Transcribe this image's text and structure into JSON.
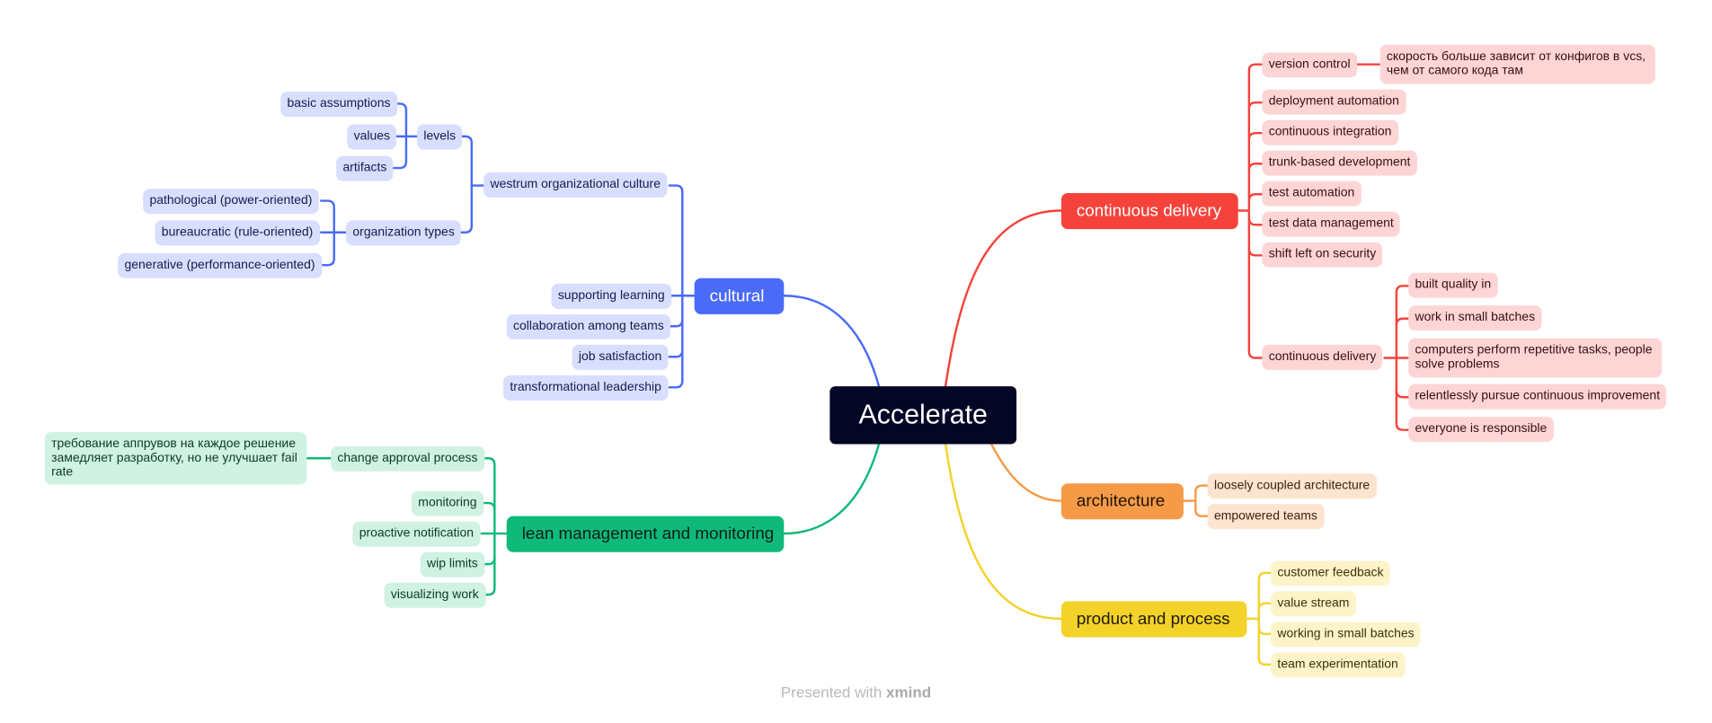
{
  "root": {
    "label": "Accelerate"
  },
  "branches": {
    "continuous_delivery": {
      "label": "continuous delivery",
      "color": "#f5433c",
      "items": {
        "version_control": "version control",
        "version_control_note": "скорость больше зависит от конфигов  в vcs, чем от самого кода там",
        "deployment_automation": "deployment automation",
        "continuous_integration": "continuous integration",
        "trunk_based": "trunk-based development",
        "test_automation": "test automation",
        "test_data": "test data management",
        "shift_left": "shift left on security",
        "continuous_delivery": "continuous delivery",
        "built_quality": "built quality in",
        "small_batches": "work in small batches",
        "computers": "computers perform repetitive tasks, people solve problems",
        "relentlessly": "relentlessly pursue continuous improvement",
        "everyone": "everyone is responsible"
      }
    },
    "cultural": {
      "label": "cultural",
      "color": "#4a6af8",
      "items": {
        "westrum": "westrum organizational culture",
        "levels": "levels",
        "basic_assumptions": "basic assumptions",
        "values": "values",
        "artifacts": "artifacts",
        "organization_types": "organization types",
        "pathological": "pathological (power-oriented)",
        "bureaucratic": "bureaucratic (rule-oriented)",
        "generative": "generative (performance-oriented)",
        "supporting_learning": "supporting learning",
        "collaboration": "collaboration among teams",
        "job_satisfaction": "job satisfaction",
        "transformational": "transformational leadership"
      }
    },
    "lean": {
      "label": "lean management and monitoring",
      "color": "#0fb979",
      "items": {
        "change_approval": "change approval process",
        "change_approval_note": "требование аппрувов на каждое решение замедляет разработку, но не улучшает fail rate",
        "monitoring": "monitoring",
        "proactive": "proactive notification",
        "wip": "wip limits",
        "visualizing": "visualizing work"
      }
    },
    "architecture": {
      "label": "architecture",
      "color": "#f59b48",
      "items": {
        "loosely": "loosely coupled architecture",
        "empowered": "empowered teams"
      }
    },
    "product": {
      "label": "product and process",
      "color": "#f3d22a",
      "items": {
        "customer_feedback": "customer feedback",
        "value_stream": "value stream",
        "working_small": "working in small batches",
        "team_experimentation": "team experimentation"
      }
    }
  },
  "footer": {
    "prefix": "Presented with",
    "brand": "xmind"
  }
}
